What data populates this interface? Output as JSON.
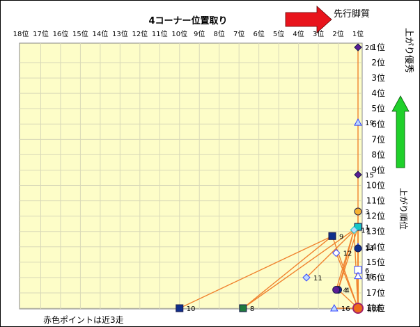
{
  "chart_data": {
    "type": "scatter",
    "title": "4コーナー位置取り",
    "footnote": "赤色ポイントは近3走",
    "x_axis": {
      "ticks": [
        "18位",
        "17位",
        "16位",
        "15位",
        "14位",
        "13位",
        "12位",
        "11位",
        "10位",
        "9位",
        "8位",
        "7位",
        "6位",
        "5位",
        "4位",
        "3位",
        "2位",
        "1位"
      ],
      "range": [
        18,
        1
      ],
      "arrow_label": "先行脚質"
    },
    "y_axis": {
      "ticks": [
        "1位",
        "2位",
        "3位",
        "4位",
        "5位",
        "6位",
        "7位",
        "8位",
        "9位",
        "10位",
        "11位",
        "12位",
        "13位",
        "14位",
        "15位",
        "16位",
        "17位",
        "18位"
      ],
      "range": [
        1,
        18
      ],
      "arrow_label": "上がり優秀",
      "side_label": "上がり順位"
    },
    "grid": true,
    "points": [
      {
        "label": "20",
        "x": 1.0,
        "y": 1.0,
        "shape": "diamond-solid",
        "color": "#5a1e96"
      },
      {
        "label": "19",
        "x": 1.0,
        "y": 5.9,
        "shape": "triangle-light",
        "color": "#3344ff"
      },
      {
        "label": "15",
        "x": 1.0,
        "y": 9.3,
        "shape": "diamond-solid",
        "color": "#5a1e96"
      },
      {
        "label": "3",
        "x": 1.0,
        "y": 11.7,
        "shape": "circle",
        "color": "#f6b333"
      },
      {
        "label": "1",
        "x": 1.0,
        "y": 12.7,
        "shape": "square",
        "color": "#18c7c7"
      },
      {
        "label": "17",
        "x": 1.2,
        "y": 12.9,
        "shape": "diamond-light",
        "color": "#18c7c7"
      },
      {
        "label": "9",
        "x": 2.3,
        "y": 13.3,
        "shape": "square",
        "color": "#0f2f8c"
      },
      {
        "label": "13",
        "x": 1.0,
        "y": 14.0,
        "shape": "triangle-light",
        "color": "#3344ff"
      },
      {
        "label": "14",
        "x": 1.0,
        "y": 14.1,
        "shape": "circle",
        "color": "#0f2f8c"
      },
      {
        "label": "12",
        "x": 2.1,
        "y": 14.4,
        "shape": "diamond-open",
        "color": "#3344ff"
      },
      {
        "label": "6",
        "x": 1.0,
        "y": 15.5,
        "shape": "square-open",
        "color": "#3344ff"
      },
      {
        "label": "11",
        "x": 3.6,
        "y": 16.0,
        "shape": "diamond-light",
        "color": "#3344ff"
      },
      {
        "label": "18",
        "x": 1.0,
        "y": 15.9,
        "shape": "triangle-open",
        "color": "#3344ff"
      },
      {
        "label": "4",
        "x": 2.0,
        "y": 16.8,
        "shape": "circle",
        "color": "#0f2f8c"
      },
      {
        "label": "4",
        "x": 2.1,
        "y": 16.8,
        "shape": "circle",
        "color": "#5a1e96"
      },
      {
        "label": "10",
        "x": 10.0,
        "y": 18.0,
        "shape": "square",
        "color": "#0f2f8c"
      },
      {
        "label": "8",
        "x": 6.8,
        "y": 18.0,
        "shape": "square",
        "color": "#1f7a3d"
      },
      {
        "label": "16",
        "x": 2.2,
        "y": 18.0,
        "shape": "triangle-light",
        "color": "#3344ff"
      },
      {
        "label": "前走",
        "x": 1.0,
        "y": 18.0,
        "shape": "circle",
        "color": "#ee6a1a"
      }
    ],
    "connections": [
      [
        0,
        1
      ],
      [
        1,
        2
      ],
      [
        2,
        18
      ],
      [
        3,
        18
      ],
      [
        4,
        18
      ],
      [
        5,
        18
      ],
      [
        6,
        18
      ],
      [
        7,
        18
      ],
      [
        8,
        18
      ],
      [
        10,
        18
      ],
      [
        12,
        18
      ],
      [
        17,
        18
      ],
      [
        6,
        15
      ],
      [
        6,
        16
      ],
      [
        4,
        16
      ],
      [
        5,
        13
      ],
      [
        11,
        4
      ],
      [
        9,
        18
      ],
      [
        13,
        4
      ],
      [
        14,
        5
      ],
      [
        13,
        18
      ]
    ]
  },
  "colors": {
    "plot_bg": "#fdfdc8",
    "grid": "#d8d8b8",
    "line": "#f0822e",
    "arrow_red": "#e8141c",
    "arrow_green": "#1fd02a"
  }
}
